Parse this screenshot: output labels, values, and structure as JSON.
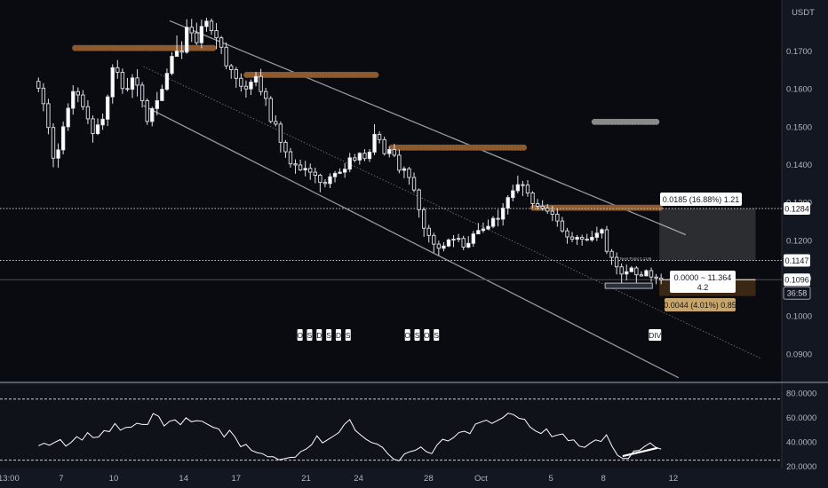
{
  "header": {
    "currency": "USDT"
  },
  "chart_data": {
    "type": "candlestick",
    "price_axis": {
      "ticks": [
        0.17,
        0.16,
        0.15,
        0.14,
        0.13,
        0.12,
        0.11,
        0.1,
        0.09
      ],
      "tick_labels": [
        "0.1700",
        "0.1600",
        "0.1500",
        "0.1400",
        "0.1300",
        "0.1200",
        "0.1100",
        "0.1000",
        "0.0900"
      ],
      "range": [
        0.0827,
        0.1788
      ]
    },
    "time_axis": {
      "labels": [
        "13:00",
        "7",
        "10",
        "14",
        "17",
        "21",
        "24",
        "28",
        "Oct",
        "5",
        "8",
        "12"
      ],
      "range_days": [
        -2.5,
        42.2
      ]
    },
    "markers": [
      {
        "label": "0.1284",
        "price": 0.1284,
        "style": "white"
      },
      {
        "label": "0.1147",
        "price": 0.1147,
        "style": "white"
      },
      {
        "label": "0.1096",
        "price": 0.1096,
        "style": "white"
      },
      {
        "label": "36:58",
        "style": "dark"
      }
    ],
    "events": [
      {
        "label": "O",
        "day": 14.65
      },
      {
        "label": "S",
        "day": 15.2
      },
      {
        "label": "D",
        "day": 15.75
      },
      {
        "label": "S",
        "day": 16.3
      },
      {
        "label": "D",
        "day": 16.85
      },
      {
        "label": "S",
        "day": 17.4
      },
      {
        "label": "O",
        "day": 20.8
      },
      {
        "label": "S",
        "day": 21.35
      },
      {
        "label": "O",
        "day": 21.9
      },
      {
        "label": "S",
        "day": 22.45
      },
      {
        "label": "DIV",
        "day": 34.95
      }
    ],
    "measure": {
      "upper_label": "0.0185 (16.88%) 1.21",
      "mid_label_1": "0.0000 ~ 11.364",
      "mid_label_2": "4.2",
      "lower_label": "0.0044 (4.01%) 0.85",
      "tiny_label": "Next Point 0.1146"
    },
    "channel": {
      "upper": [
        [
          7.2,
          0.178
        ],
        [
          36.7,
          0.1215
        ]
      ],
      "lower": [
        [
          5.7,
          0.1556
        ],
        [
          36.3,
          0.0837
        ]
      ],
      "middle": [
        [
          5.7,
          0.1659
        ],
        [
          41.0,
          0.0888
        ]
      ]
    },
    "supply_zones": [
      {
        "day_from": 1.8,
        "day_to": 9.7,
        "price": 0.1708,
        "color": "#8c5a2e"
      },
      {
        "day_from": 11.6,
        "day_to": 19.0,
        "price": 0.1637,
        "color": "#8c5a2e"
      },
      {
        "day_from": 19.9,
        "day_to": 27.6,
        "price": 0.1445,
        "color": "#8c5a2e"
      },
      {
        "day_from": 28.0,
        "day_to": 35.3,
        "price": 0.1286,
        "color": "#8c5a2e"
      },
      {
        "day_from": 31.5,
        "day_to": 35.1,
        "price": 0.1513,
        "color": "#8a8a8a"
      }
    ],
    "series": [
      {
        "name": "",
        "ohlc": [
          [
            0.162,
            0.1602,
            0.163,
            0.1591
          ],
          [
            0.1602,
            0.1561,
            0.1615,
            0.1541
          ],
          [
            0.1561,
            0.1498,
            0.1574,
            0.148
          ],
          [
            0.1498,
            0.1417,
            0.1509,
            0.1393
          ],
          [
            0.1417,
            0.1439,
            0.1456,
            0.1392
          ],
          [
            0.1439,
            0.15,
            0.1514,
            0.1427
          ],
          [
            0.15,
            0.1549,
            0.1562,
            0.1489
          ],
          [
            0.1549,
            0.1593,
            0.161,
            0.1532
          ],
          [
            0.1593,
            0.1584,
            0.1604,
            0.1565
          ],
          [
            0.1584,
            0.1553,
            0.1597,
            0.1544
          ],
          [
            0.1553,
            0.1521,
            0.157,
            0.1507
          ],
          [
            0.1521,
            0.1482,
            0.153,
            0.1458
          ],
          [
            0.1482,
            0.1505,
            0.1522,
            0.1478
          ],
          [
            0.1505,
            0.152,
            0.1535,
            0.1492
          ],
          [
            0.152,
            0.1579,
            0.1585,
            0.1502
          ],
          [
            0.1579,
            0.1656,
            0.1665,
            0.1561
          ],
          [
            0.1656,
            0.1644,
            0.1676,
            0.1627
          ],
          [
            0.1644,
            0.1601,
            0.1654,
            0.1587
          ],
          [
            0.1601,
            0.1599,
            0.1629,
            0.1593
          ],
          [
            0.1599,
            0.1629,
            0.1639,
            0.1576
          ],
          [
            0.1629,
            0.161,
            0.1652,
            0.158
          ],
          [
            0.161,
            0.1569,
            0.1618,
            0.1551
          ],
          [
            0.1569,
            0.1514,
            0.1575,
            0.1505
          ],
          [
            0.1514,
            0.1548,
            0.1553,
            0.1501
          ],
          [
            0.1548,
            0.1569,
            0.1592,
            0.153
          ],
          [
            0.1569,
            0.1599,
            0.1611,
            0.1582
          ],
          [
            0.1599,
            0.1641,
            0.1654,
            0.1595
          ],
          [
            0.1641,
            0.1686,
            0.1697,
            0.1636
          ],
          [
            0.1686,
            0.17,
            0.1741,
            0.1686
          ],
          [
            0.17,
            0.1697,
            0.1726,
            0.1679
          ],
          [
            0.1697,
            0.1763,
            0.1784,
            0.1693
          ],
          [
            0.1763,
            0.1748,
            0.1785,
            0.1724
          ],
          [
            0.1748,
            0.1722,
            0.1775,
            0.1716
          ],
          [
            0.1722,
            0.1765,
            0.1783,
            0.1707
          ],
          [
            0.1765,
            0.1779,
            0.1788,
            0.1751
          ],
          [
            0.1779,
            0.1754,
            0.1786,
            0.1743
          ],
          [
            0.1754,
            0.1735,
            0.1774,
            0.1705
          ],
          [
            0.1735,
            0.171,
            0.174,
            0.1692
          ],
          [
            0.171,
            0.1661,
            0.1723,
            0.1652
          ],
          [
            0.1661,
            0.1651,
            0.1666,
            0.1627
          ],
          [
            0.1651,
            0.1628,
            0.1658,
            0.1603
          ],
          [
            0.1628,
            0.1607,
            0.1641,
            0.1593
          ],
          [
            0.1607,
            0.16,
            0.1622,
            0.1577
          ],
          [
            0.16,
            0.1618,
            0.1625,
            0.1584
          ],
          [
            0.1618,
            0.1633,
            0.1645,
            0.1607
          ],
          [
            0.1633,
            0.1593,
            0.1653,
            0.1583
          ],
          [
            0.1593,
            0.1575,
            0.1603,
            0.1555
          ],
          [
            0.1575,
            0.1514,
            0.1581,
            0.1509
          ],
          [
            0.1514,
            0.1507,
            0.153,
            0.1501
          ],
          [
            0.1507,
            0.1459,
            0.1514,
            0.1432
          ],
          [
            0.1459,
            0.1434,
            0.1465,
            0.1418
          ],
          [
            0.1434,
            0.1402,
            0.1444,
            0.1392
          ],
          [
            0.1402,
            0.1399,
            0.1414,
            0.1376
          ],
          [
            0.1399,
            0.1386,
            0.1413,
            0.1383
          ],
          [
            0.1386,
            0.139,
            0.141,
            0.1369
          ],
          [
            0.139,
            0.138,
            0.1403,
            0.136
          ],
          [
            0.138,
            0.1372,
            0.1392,
            0.1351
          ],
          [
            0.1372,
            0.1353,
            0.1376,
            0.1327
          ],
          [
            0.1353,
            0.135,
            0.1361,
            0.134
          ],
          [
            0.135,
            0.1368,
            0.1377,
            0.1338
          ],
          [
            0.1368,
            0.1377,
            0.1383,
            0.1353
          ],
          [
            0.1377,
            0.138,
            0.139,
            0.1375
          ],
          [
            0.138,
            0.1388,
            0.1404,
            0.1365
          ],
          [
            0.1388,
            0.1418,
            0.1431,
            0.138
          ],
          [
            0.1418,
            0.1412,
            0.1428,
            0.1406
          ],
          [
            0.1412,
            0.143,
            0.1433,
            0.14
          ],
          [
            0.143,
            0.1416,
            0.1441,
            0.1409
          ],
          [
            0.1416,
            0.1433,
            0.1441,
            0.1407
          ],
          [
            0.1433,
            0.148,
            0.1507,
            0.1425
          ],
          [
            0.148,
            0.1466,
            0.1488,
            0.1456
          ],
          [
            0.1466,
            0.1429,
            0.1474,
            0.1424
          ],
          [
            0.1429,
            0.144,
            0.1448,
            0.1419
          ],
          [
            0.144,
            0.1425,
            0.1455,
            0.142
          ],
          [
            0.1425,
            0.1385,
            0.144,
            0.1377
          ],
          [
            0.1385,
            0.1389,
            0.1395,
            0.1364
          ],
          [
            0.1389,
            0.1366,
            0.1394,
            0.1347
          ],
          [
            0.1366,
            0.1333,
            0.1379,
            0.1327
          ],
          [
            0.1333,
            0.1281,
            0.1337,
            0.126
          ],
          [
            0.1281,
            0.1232,
            0.1287,
            0.1209
          ],
          [
            0.1232,
            0.1213,
            0.1241,
            0.1194
          ],
          [
            0.1213,
            0.119,
            0.122,
            0.1167
          ],
          [
            0.119,
            0.1179,
            0.1199,
            0.116
          ],
          [
            0.1179,
            0.1185,
            0.1195,
            0.1171
          ],
          [
            0.1185,
            0.1201,
            0.1205,
            0.1182
          ],
          [
            0.1201,
            0.1203,
            0.1214,
            0.1182
          ],
          [
            0.1203,
            0.1205,
            0.1217,
            0.1195
          ],
          [
            0.1205,
            0.1182,
            0.1212,
            0.1174
          ],
          [
            0.1182,
            0.1192,
            0.1211,
            0.1179
          ],
          [
            0.1192,
            0.1217,
            0.1225,
            0.1183
          ],
          [
            0.1217,
            0.1226,
            0.1246,
            0.1217
          ],
          [
            0.1226,
            0.123,
            0.1247,
            0.122
          ],
          [
            0.123,
            0.1237,
            0.1255,
            0.1227
          ],
          [
            0.1237,
            0.1258,
            0.1264,
            0.1232
          ],
          [
            0.1258,
            0.1256,
            0.1281,
            0.1237
          ],
          [
            0.1256,
            0.1285,
            0.1298,
            0.1239
          ],
          [
            0.1285,
            0.1313,
            0.1319,
            0.1268
          ],
          [
            0.1313,
            0.1331,
            0.1347,
            0.1303
          ],
          [
            0.1331,
            0.1347,
            0.1371,
            0.1324
          ],
          [
            0.1347,
            0.1346,
            0.1357,
            0.1317
          ],
          [
            0.1346,
            0.1325,
            0.1359,
            0.1315
          ],
          [
            0.1325,
            0.1297,
            0.133,
            0.1286
          ],
          [
            0.1297,
            0.129,
            0.1309,
            0.1281
          ],
          [
            0.129,
            0.1285,
            0.1306,
            0.1279
          ],
          [
            0.1285,
            0.1277,
            0.1296,
            0.127
          ],
          [
            0.1277,
            0.1269,
            0.1291,
            0.1251
          ],
          [
            0.1269,
            0.1251,
            0.1283,
            0.1236
          ],
          [
            0.1251,
            0.1225,
            0.1262,
            0.122
          ],
          [
            0.1225,
            0.1209,
            0.1233,
            0.1191
          ],
          [
            0.1209,
            0.1203,
            0.1222,
            0.1195
          ],
          [
            0.1203,
            0.1208,
            0.1214,
            0.1188
          ],
          [
            0.1208,
            0.1203,
            0.1215,
            0.1186
          ],
          [
            0.1203,
            0.1201,
            0.1217,
            0.1197
          ],
          [
            0.1201,
            0.1208,
            0.1225,
            0.1196
          ],
          [
            0.1208,
            0.1219,
            0.1236,
            0.1198
          ],
          [
            0.1219,
            0.1228,
            0.1232,
            0.1205
          ],
          [
            0.1228,
            0.1171,
            0.1238,
            0.1164
          ],
          [
            0.1171,
            0.1155,
            0.1177,
            0.1135
          ],
          [
            0.1155,
            0.113,
            0.1168,
            0.111
          ],
          [
            0.113,
            0.1111,
            0.1139,
            0.1086
          ],
          [
            0.1111,
            0.1117,
            0.1136,
            0.1094
          ],
          [
            0.1117,
            0.1127,
            0.1132,
            0.1123
          ],
          [
            0.1127,
            0.1109,
            0.1132,
            0.1088
          ],
          [
            0.1109,
            0.1106,
            0.1118,
            0.1104
          ],
          [
            0.1106,
            0.112,
            0.1123,
            0.1111
          ],
          [
            0.112,
            0.1103,
            0.1128,
            0.109
          ],
          [
            0.1103,
            0.11,
            0.1111,
            0.1084
          ],
          [
            0.11,
            0.1096,
            0.1112,
            0.1084
          ]
        ]
      }
    ],
    "oscillator": {
      "ticks": [
        80,
        60,
        40,
        20
      ],
      "tick_labels": [
        "80.0000",
        "60.0000",
        "40.0000",
        "20.0000"
      ],
      "range": [
        18.2,
        85
      ],
      "levels": [
        75,
        25
      ],
      "values": [
        36.8,
        38.9,
        37.2,
        39.7,
        41.9,
        36.5,
        39.6,
        44.3,
        41.4,
        47.5,
        43.5,
        44.0,
        49.1,
        48.4,
        55.0,
        49.6,
        51.8,
        52.0,
        55.2,
        54.2,
        54.2,
        63.2,
        60.9,
        53.0,
        56.8,
        58.0,
        54.1,
        59.7,
        56.5,
        57.3,
        56.8,
        54.2,
        51.9,
        50.6,
        44.0,
        49.5,
        43.9,
        36.0,
        37.9,
        33.0,
        31.2,
        30.3,
        27.8,
        27.8,
        25.3,
        26.2,
        27.2,
        27.4,
        31.9,
        34.1,
        37.6,
        44.9,
        39.1,
        41.9,
        44.7,
        47.6,
        54.3,
        58.2,
        49.4,
        45.6,
        42.0,
        39.4,
        38.2,
        35.4,
        30.0,
        26.0,
        24.5,
        30.0,
        31.9,
        33.1,
        35.8,
        32.0,
        30.3,
        37.6,
        42.1,
        40.7,
        43.5,
        47.7,
        48.7,
        46.7,
        54.5,
        56.2,
        57.8,
        55.1,
        57.3,
        59.7,
        63.4,
        62.2,
        59.2,
        58.4,
        52.1,
        48.9,
        46.8,
        50.6,
        44.2,
        45.6,
        46.5,
        41.0,
        41.6,
        36.6,
        35.5,
        38.8,
        41.6,
        40.3,
        45.8,
        36.6,
        29.1,
        26.3,
        26.4,
        32.4,
        33.0,
        36.3,
        39.1,
        35.5,
        34.1
      ],
      "trendline": [
        [
          33.1,
          28.3
        ],
        [
          35.1,
          35.0
        ]
      ]
    }
  }
}
